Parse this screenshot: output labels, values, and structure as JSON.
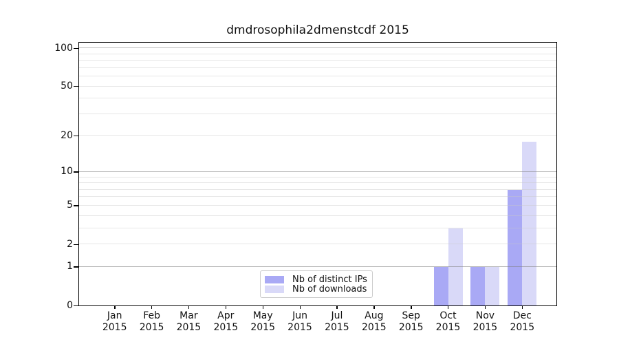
{
  "figure": {
    "title": "dmdrosophila2dmenstcdf 2015"
  },
  "chart_data": {
    "type": "bar",
    "title": "dmdrosophila2dmenstcdf 2015",
    "categories": [
      "Jan 2015",
      "Feb 2015",
      "Mar 2015",
      "Apr 2015",
      "May 2015",
      "Jun 2015",
      "Jul 2015",
      "Aug 2015",
      "Sep 2015",
      "Oct 2015",
      "Nov 2015",
      "Dec 2015"
    ],
    "x_tick_months": [
      "Jan",
      "Feb",
      "Mar",
      "Apr",
      "May",
      "Jun",
      "Jul",
      "Aug",
      "Sep",
      "Oct",
      "Nov",
      "Dec"
    ],
    "x_tick_year": "2015",
    "series": [
      {
        "name": "Nb of distinct IPs",
        "color": "#a9a9f5",
        "values": [
          0,
          0,
          0,
          0,
          0,
          0,
          0,
          0,
          0,
          1,
          1,
          7
        ]
      },
      {
        "name": "Nb of downloads",
        "color": "#d9d9f8",
        "values": [
          0,
          0,
          0,
          0,
          0,
          0,
          0,
          0,
          0,
          3,
          1,
          18
        ]
      }
    ],
    "y_axis": {
      "scale": "log1p",
      "tick_labels": [
        0,
        1,
        2,
        5,
        10,
        20,
        50,
        100
      ],
      "major_gridlines": [
        1,
        10,
        100
      ],
      "minor_gridlines": [
        2,
        3,
        4,
        5,
        6,
        7,
        8,
        9,
        20,
        30,
        40,
        50,
        60,
        70,
        80,
        90
      ],
      "ylim": [
        0,
        111
      ]
    },
    "xlabel": "",
    "ylabel": "",
    "grid": "on",
    "legend": {
      "position": "bottom-center",
      "entries": [
        "Nb of distinct IPs",
        "Nb of downloads"
      ]
    }
  }
}
